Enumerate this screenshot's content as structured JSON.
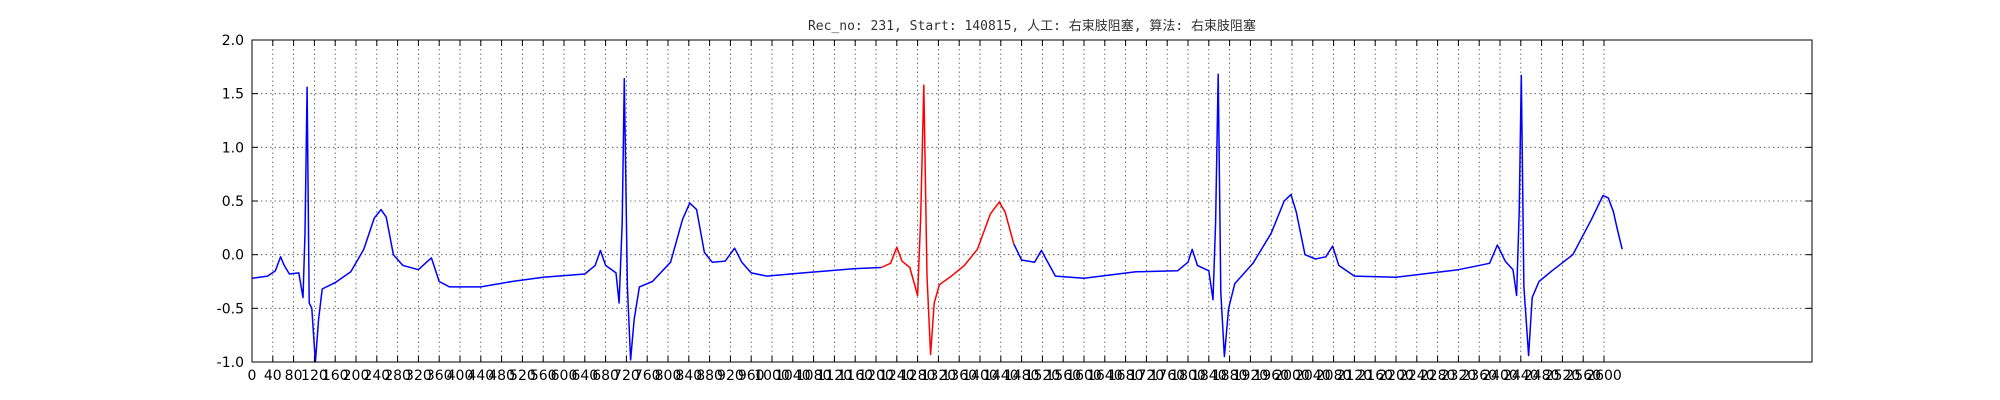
{
  "chart_data": {
    "type": "line",
    "title": "Rec_no: 231, Start: 140815, 人工: 右束肢阻塞, 算法: 右束肢阻塞",
    "xlabel": "",
    "ylabel": "",
    "xlim": [
      0,
      3000
    ],
    "ylim": [
      -1.0,
      2.0
    ],
    "grid": true,
    "y_ticks": [
      "-1.0",
      "-0.5",
      "0.0",
      "0.5",
      "1.0",
      "1.5",
      "2.0"
    ],
    "x_ticks": [
      "0",
      "40",
      "80",
      "120",
      "160",
      "200",
      "240",
      "280",
      "320",
      "360",
      "400",
      "440",
      "480",
      "520",
      "560",
      "600",
      "640",
      "680",
      "720",
      "760",
      "800",
      "840",
      "880",
      "920",
      "960",
      "1000",
      "1040",
      "1080",
      "1120",
      "1160",
      "1200",
      "1240",
      "1280",
      "1320",
      "1360",
      "1400",
      "1440",
      "1480",
      "1520",
      "1560",
      "1600",
      "1640",
      "1680",
      "1720",
      "1760",
      "1800",
      "1840",
      "1880",
      "1920",
      "1960",
      "2000",
      "2040",
      "2080",
      "2120",
      "2160",
      "2200",
      "2240",
      "2280",
      "2320",
      "2360",
      "2400",
      "2440",
      "2480",
      "2520",
      "2560",
      "2600"
    ],
    "series": [
      {
        "color": "#0000ff",
        "points": [
          [
            0,
            -0.22
          ],
          [
            30,
            -0.2
          ],
          [
            45,
            -0.15
          ],
          [
            55,
            -0.02
          ],
          [
            62,
            -0.1
          ],
          [
            72,
            -0.18
          ],
          [
            90,
            -0.17
          ],
          [
            98,
            -0.4
          ],
          [
            102,
            0.2
          ],
          [
            106,
            1.56
          ],
          [
            110,
            -0.45
          ],
          [
            115,
            -0.5
          ],
          [
            122,
            -1.0
          ],
          [
            128,
            -0.6
          ],
          [
            135,
            -0.32
          ],
          [
            160,
            -0.26
          ],
          [
            190,
            -0.16
          ],
          [
            215,
            0.05
          ],
          [
            235,
            0.34
          ],
          [
            248,
            0.42
          ],
          [
            258,
            0.35
          ],
          [
            272,
            0.0
          ],
          [
            290,
            -0.1
          ],
          [
            320,
            -0.14
          ],
          [
            338,
            -0.06
          ],
          [
            345,
            -0.03
          ],
          [
            360,
            -0.25
          ],
          [
            380,
            -0.3
          ],
          [
            440,
            -0.3
          ],
          [
            500,
            -0.25
          ],
          [
            560,
            -0.21
          ],
          [
            640,
            -0.18
          ],
          [
            660,
            -0.1
          ],
          [
            670,
            0.04
          ],
          [
            680,
            -0.1
          ],
          [
            700,
            -0.17
          ],
          [
            706,
            -0.45
          ],
          [
            712,
            0.3
          ],
          [
            716,
            1.64
          ],
          [
            722,
            -0.3
          ],
          [
            728,
            -0.98
          ],
          [
            735,
            -0.6
          ],
          [
            745,
            -0.3
          ],
          [
            770,
            -0.25
          ],
          [
            805,
            -0.07
          ],
          [
            828,
            0.33
          ],
          [
            842,
            0.48
          ],
          [
            855,
            0.42
          ],
          [
            870,
            0.02
          ],
          [
            885,
            -0.07
          ],
          [
            910,
            -0.06
          ],
          [
            928,
            0.06
          ],
          [
            942,
            -0.07
          ],
          [
            960,
            -0.17
          ],
          [
            990,
            -0.2
          ],
          [
            1060,
            -0.17
          ],
          [
            1160,
            -0.13
          ],
          [
            1210,
            -0.12
          ]
        ]
      },
      {
        "color": "#ff0000",
        "points": [
          [
            1210,
            -0.12
          ],
          [
            1228,
            -0.08
          ],
          [
            1240,
            0.07
          ],
          [
            1250,
            -0.06
          ],
          [
            1265,
            -0.12
          ],
          [
            1280,
            -0.38
          ],
          [
            1286,
            0.35
          ],
          [
            1292,
            1.58
          ],
          [
            1298,
            -0.2
          ],
          [
            1305,
            -0.93
          ],
          [
            1312,
            -0.45
          ],
          [
            1322,
            -0.28
          ],
          [
            1345,
            -0.2
          ],
          [
            1370,
            -0.1
          ],
          [
            1395,
            0.05
          ],
          [
            1420,
            0.38
          ],
          [
            1437,
            0.49
          ],
          [
            1448,
            0.4
          ],
          [
            1465,
            0.1
          ]
        ]
      },
      {
        "color": "#0000ff",
        "points": [
          [
            1465,
            0.1
          ],
          [
            1480,
            -0.05
          ],
          [
            1505,
            -0.07
          ],
          [
            1518,
            0.04
          ],
          [
            1528,
            -0.05
          ],
          [
            1545,
            -0.2
          ],
          [
            1600,
            -0.22
          ],
          [
            1700,
            -0.16
          ],
          [
            1780,
            -0.15
          ],
          [
            1800,
            -0.07
          ],
          [
            1808,
            0.05
          ],
          [
            1818,
            -0.1
          ],
          [
            1840,
            -0.15
          ],
          [
            1848,
            -0.42
          ],
          [
            1853,
            0.3
          ],
          [
            1858,
            1.68
          ],
          [
            1863,
            -0.35
          ],
          [
            1870,
            -0.95
          ],
          [
            1878,
            -0.5
          ],
          [
            1890,
            -0.27
          ],
          [
            1925,
            -0.08
          ],
          [
            1960,
            0.2
          ],
          [
            1985,
            0.5
          ],
          [
            1998,
            0.56
          ],
          [
            2008,
            0.4
          ],
          [
            2025,
            0.0
          ],
          [
            2045,
            -0.04
          ],
          [
            2065,
            -0.02
          ],
          [
            2078,
            0.08
          ],
          [
            2090,
            -0.1
          ],
          [
            2120,
            -0.2
          ],
          [
            2200,
            -0.21
          ],
          [
            2320,
            -0.14
          ],
          [
            2380,
            -0.08
          ],
          [
            2395,
            0.09
          ],
          [
            2410,
            -0.06
          ],
          [
            2425,
            -0.14
          ],
          [
            2432,
            -0.38
          ],
          [
            2437,
            0.4
          ],
          [
            2441,
            1.67
          ],
          [
            2446,
            -0.3
          ],
          [
            2455,
            -0.94
          ],
          [
            2462,
            -0.4
          ],
          [
            2475,
            -0.25
          ],
          [
            2500,
            -0.15
          ],
          [
            2540,
            0.0
          ],
          [
            2575,
            0.32
          ],
          [
            2598,
            0.55
          ],
          [
            2608,
            0.53
          ],
          [
            2618,
            0.4
          ],
          [
            2625,
            0.25
          ],
          [
            2635,
            0.05
          ]
        ]
      }
    ]
  }
}
